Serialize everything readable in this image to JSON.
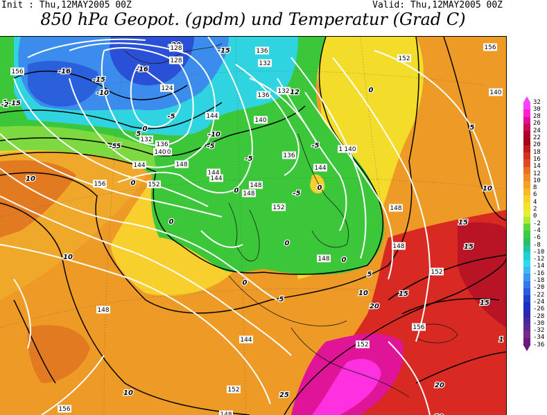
{
  "header": {
    "init": "Init : Thu,12MAY2005 00Z",
    "valid": "Valid: Thu,12MAY2005 00Z",
    "title": "850 hPa Geopot. (gpdm) und Temperatur (Grad C)"
  },
  "legend": {
    "levels": [
      "32",
      "30",
      "28",
      "26",
      "24",
      "22",
      "20",
      "18",
      "16",
      "14",
      "12",
      "10",
      "8",
      "6",
      "4",
      "2",
      "0",
      "-2",
      "-4",
      "-6",
      "-8",
      "-10",
      "-12",
      "-14",
      "-16",
      "-18",
      "-20",
      "-22",
      "-24",
      "-26",
      "-28",
      "-30",
      "-32",
      "-34",
      "-36"
    ],
    "colors": [
      "#ff40ff",
      "#ff20d0",
      "#e0109a",
      "#c80c50",
      "#b00028",
      "#a00a1c",
      "#c01c1c",
      "#d83020",
      "#e04a22",
      "#ea6e26",
      "#f08a26",
      "#f4a028",
      "#f8b82a",
      "#fad02e",
      "#f4e02a",
      "#e6ee30",
      "#b0e838",
      "#5ad838",
      "#3acb48",
      "#28c060",
      "#20c3a4",
      "#20d0d0",
      "#30d8ee",
      "#40b8f4",
      "#3c96ee",
      "#3478ec",
      "#2a5ce0",
      "#2040d0",
      "#1830c0",
      "#2a28b0",
      "#4628a0",
      "#602890",
      "#762a8a",
      "#6a1a7a"
    ]
  },
  "map": {
    "temperature_labels": [
      {
        "text": "-20"
      },
      {
        "text": "-15"
      },
      {
        "text": "-16"
      },
      {
        "text": "-16"
      },
      {
        "text": "-15"
      },
      {
        "text": "-15"
      },
      {
        "text": "-10"
      },
      {
        "text": "-5"
      },
      {
        "text": "-5"
      },
      {
        "text": "-10"
      },
      {
        "text": "-12"
      },
      {
        "text": "-5"
      },
      {
        "text": "-5"
      },
      {
        "text": "-5"
      },
      {
        "text": "-5"
      },
      {
        "text": "0"
      },
      {
        "text": "0"
      },
      {
        "text": "0"
      },
      {
        "text": "0"
      },
      {
        "text": "0"
      },
      {
        "text": "0"
      },
      {
        "text": "0"
      },
      {
        "text": "0"
      },
      {
        "text": "0"
      },
      {
        "text": "5"
      },
      {
        "text": "5"
      },
      {
        "text": "5"
      },
      {
        "text": "5"
      },
      {
        "text": "5"
      },
      {
        "text": "10"
      },
      {
        "text": "10"
      },
      {
        "text": "10"
      },
      {
        "text": "10"
      },
      {
        "text": "10"
      },
      {
        "text": "10"
      },
      {
        "text": "15"
      },
      {
        "text": "15"
      },
      {
        "text": "15"
      },
      {
        "text": "15"
      },
      {
        "text": "20"
      },
      {
        "text": "20"
      },
      {
        "text": "25"
      },
      {
        "text": "1"
      },
      {
        "text": "1"
      },
      {
        "text": "-2"
      }
    ],
    "geopotential_labels": [
      {
        "text": "128"
      },
      {
        "text": "128"
      },
      {
        "text": "124"
      },
      {
        "text": "132"
      },
      {
        "text": "136"
      },
      {
        "text": "136"
      },
      {
        "text": "132"
      },
      {
        "text": "136"
      },
      {
        "text": "140"
      },
      {
        "text": "140"
      },
      {
        "text": "144"
      },
      {
        "text": "144"
      },
      {
        "text": "144"
      },
      {
        "text": "144"
      },
      {
        "text": "144"
      },
      {
        "text": "144"
      },
      {
        "text": "148"
      },
      {
        "text": "148"
      },
      {
        "text": "148"
      },
      {
        "text": "148"
      },
      {
        "text": "148"
      },
      {
        "text": "148"
      },
      {
        "text": "148"
      },
      {
        "text": "152"
      },
      {
        "text": "152"
      },
      {
        "text": "152"
      },
      {
        "text": "152"
      },
      {
        "text": "152"
      },
      {
        "text": "152"
      },
      {
        "text": "156"
      },
      {
        "text": "156"
      },
      {
        "text": "156"
      },
      {
        "text": "156"
      },
      {
        "text": "156"
      },
      {
        "text": "136"
      },
      {
        "text": "140"
      },
      {
        "text": "140"
      },
      {
        "text": "140"
      },
      {
        "text": "132"
      },
      {
        "text": "136"
      },
      {
        "text": "148"
      }
    ]
  }
}
